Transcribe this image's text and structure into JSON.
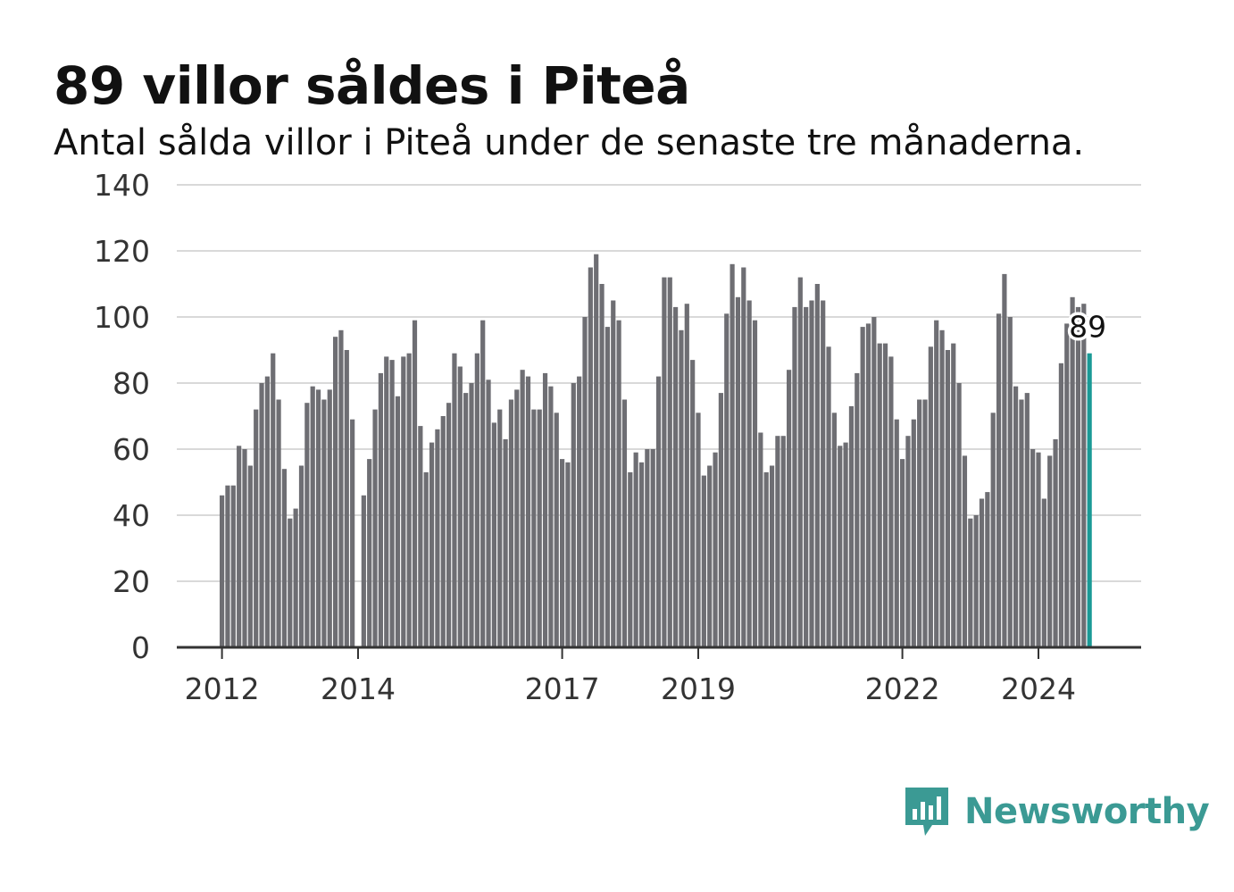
{
  "header": {
    "title": "89 villor såldes i Piteå",
    "subtitle": "Antal sålda villor i Piteå under de senaste tre månaderna."
  },
  "brand": {
    "name": "Newsworthy",
    "icon": "newsworthy-logo-icon",
    "color": "#3b9a94"
  },
  "colors": {
    "bar": "#6e6e73",
    "highlight": "#1a9a96",
    "grid": "#d9d9d9",
    "axis": "#333333"
  },
  "chart_data": {
    "type": "bar",
    "title": "89 villor såldes i Piteå",
    "subtitle": "Antal sålda villor i Piteå under de senaste tre månaderna.",
    "ylim": [
      0,
      140
    ],
    "yticks": [
      0,
      20,
      40,
      60,
      80,
      100,
      120,
      140
    ],
    "xticks": [
      {
        "label": "2012",
        "index": 0
      },
      {
        "label": "2014",
        "index": 24
      },
      {
        "label": "2017",
        "index": 60
      },
      {
        "label": "2019",
        "index": 84
      },
      {
        "label": "2022",
        "index": 120
      },
      {
        "label": "2024",
        "index": 144
      }
    ],
    "grid": true,
    "x_start": "2012-01",
    "frequency": "monthly",
    "values": [
      46,
      49,
      49,
      61,
      60,
      55,
      72,
      80,
      82,
      89,
      75,
      54,
      39,
      42,
      55,
      74,
      79,
      78,
      75,
      78,
      94,
      96,
      90,
      69,
      0,
      46,
      57,
      72,
      83,
      88,
      87,
      76,
      88,
      89,
      99,
      67,
      53,
      62,
      66,
      70,
      74,
      89,
      85,
      77,
      80,
      89,
      99,
      81,
      68,
      72,
      63,
      75,
      78,
      84,
      82,
      72,
      72,
      83,
      79,
      71,
      57,
      56,
      80,
      82,
      100,
      115,
      119,
      110,
      97,
      105,
      99,
      75,
      53,
      59,
      56,
      60,
      60,
      82,
      112,
      112,
      103,
      96,
      104,
      87,
      71,
      52,
      55,
      59,
      77,
      101,
      116,
      106,
      115,
      105,
      99,
      65,
      53,
      55,
      64,
      64,
      84,
      103,
      112,
      103,
      105,
      110,
      105,
      91,
      71,
      61,
      62,
      73,
      83,
      97,
      98,
      100,
      92,
      92,
      88,
      69,
      57,
      64,
      69,
      75,
      75,
      91,
      99,
      96,
      90,
      92,
      80,
      58,
      39,
      40,
      45,
      47,
      71,
      101,
      113,
      100,
      79,
      75,
      77,
      60,
      59,
      45,
      58,
      63,
      86,
      98,
      106,
      103,
      104,
      89
    ],
    "highlight_value": 89,
    "highlight_label": "89"
  }
}
